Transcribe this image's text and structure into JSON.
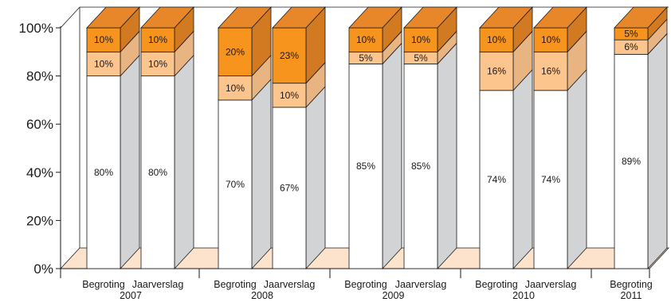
{
  "chart_data": {
    "type": "bar",
    "stacked": true,
    "three_d": true,
    "ylim": [
      0,
      100
    ],
    "yticks": [
      "0%",
      "20%",
      "40%",
      "60%",
      "80%",
      "100%"
    ],
    "groups": [
      {
        "year": "2007",
        "bars": [
          "Begroting",
          "Jaarverslag"
        ]
      },
      {
        "year": "2008",
        "bars": [
          "Begroting",
          "Jaarverslag"
        ]
      },
      {
        "year": "2009",
        "bars": [
          "Begroting",
          "Jaarverslag"
        ]
      },
      {
        "year": "2010",
        "bars": [
          "Begroting",
          "Jaarverslag"
        ]
      },
      {
        "year": "2011",
        "bars": [
          "Begroting"
        ]
      }
    ],
    "categories": [
      "Begroting 2007",
      "Jaarverslag 2007",
      "Begroting 2008",
      "Jaarverslag 2008",
      "Begroting 2009",
      "Jaarverslag 2009",
      "Begroting 2010",
      "Jaarverslag 2010",
      "Begroting 2011"
    ],
    "series": [
      {
        "values": [
          80,
          80,
          70,
          67,
          85,
          85,
          74,
          74,
          89
        ],
        "labels": [
          "80%",
          "80%",
          "70%",
          "67%",
          "85%",
          "85%",
          "74%",
          "74%",
          "89%"
        ],
        "color": "#ffffff"
      },
      {
        "values": [
          10,
          10,
          10,
          10,
          5,
          5,
          16,
          16,
          6
        ],
        "labels": [
          "10%",
          "10%",
          "10%",
          "10%",
          "5%",
          "5%",
          "16%",
          "16%",
          "6%"
        ],
        "color": "#fcc58e"
      },
      {
        "values": [
          10,
          10,
          20,
          23,
          10,
          10,
          10,
          10,
          5
        ],
        "labels": [
          "10%",
          "10%",
          "20%",
          "23%",
          "10%",
          "10%",
          "10%",
          "10%",
          "5%"
        ],
        "color": "#f7941d"
      }
    ],
    "colors": {
      "side": "#d2d3d5",
      "floor": "#fde3cc",
      "orange_top": "#e8872a",
      "orange_side": "#d27a22",
      "peach_side": "#e8b482",
      "line": "#1a1a1a"
    }
  }
}
